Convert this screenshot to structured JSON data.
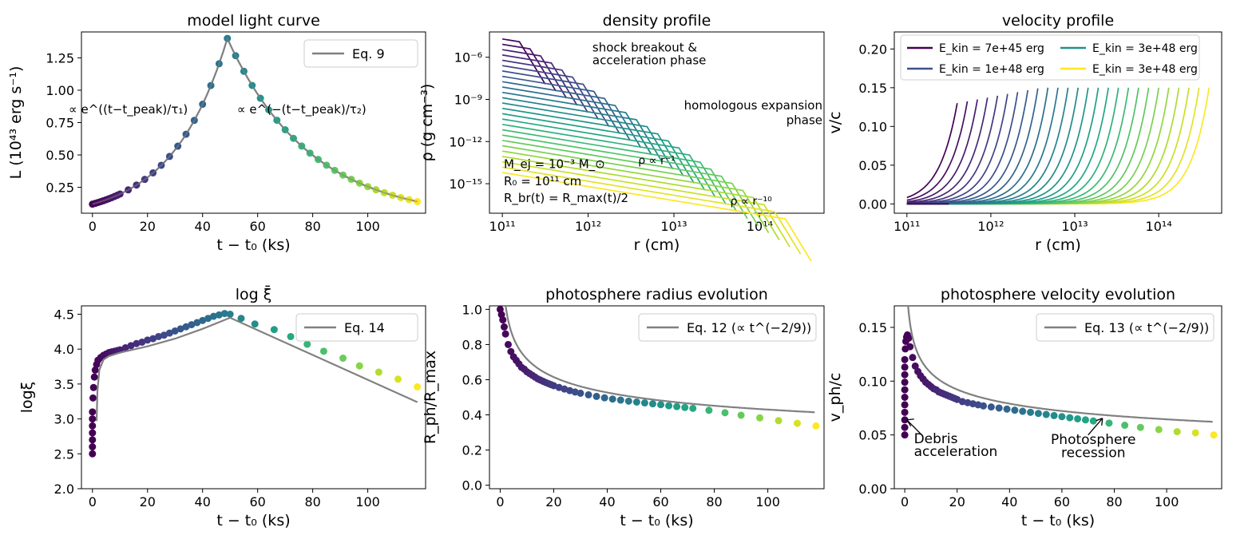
{
  "chart_data": [
    {
      "id": "light-curve",
      "type": "line+scatter",
      "title": "model light curve",
      "xlabel": "t − t₀ (ks)",
      "ylabel": "L (10⁴³ erg s⁻¹)",
      "xlim": [
        -4,
        121
      ],
      "ylim": [
        0.05,
        1.45
      ],
      "xticks": [
        0,
        20,
        40,
        60,
        80,
        100
      ],
      "xtick_labels": [
        "0",
        "20",
        "40",
        "60",
        "80",
        "100"
      ],
      "yticks": [
        0.25,
        0.5,
        0.75,
        1.0,
        1.25
      ],
      "ytick_labels": [
        "0.25",
        "0.50",
        "0.75",
        "1.00",
        "1.25"
      ],
      "model": {
        "name": "Eq. 9",
        "color": "#808080",
        "t_peak": 49,
        "L_peak": 1.4,
        "L0": 0.12,
        "t0": 0,
        "t_end": 118,
        "L_end": 0.14
      },
      "legend": [
        "Eq. 9"
      ],
      "annotations": [
        "∝ e^((t−t_peak)/τ₁)",
        "∝ e^(−(t−t_peak)/τ₂)"
      ],
      "points": {
        "t_start": 0,
        "t_end": 118,
        "dense_until": 10,
        "dense_step": 1,
        "step": 3
      }
    },
    {
      "id": "density-profile",
      "type": "line",
      "title": "density profile",
      "xlabel": "r (cm)",
      "ylabel": "ρ (g cm⁻³)",
      "xscale": "log",
      "yscale": "log",
      "xlim_log10": [
        10.85,
        14.75
      ],
      "ylim_log10": [
        -17.1,
        -4.2
      ],
      "xticks_log10": [
        11,
        12,
        13,
        14
      ],
      "xtick_labels": [
        "10¹¹",
        "10¹²",
        "10¹³",
        "10¹⁴"
      ],
      "yticks_log10": [
        -6,
        -9,
        -12,
        -15
      ],
      "ytick_labels": [
        "10⁻⁶",
        "10⁻⁹",
        "10⁻¹²",
        "10⁻¹⁵"
      ],
      "n_curves": 26,
      "rmax_log10_range": [
        11.5,
        14.6
      ],
      "rho_start_log10_range": [
        -4.7,
        -14.2
      ],
      "annotations": [
        "shock breakout &",
        "acceleration phase",
        "homologous expansion",
        "phase",
        "ρ ∝ r⁻¹",
        "ρ ∝ r⁻¹⁰",
        "M_ej = 10⁻³ M_⊙",
        "R₀ = 10¹¹ cm",
        "R_br(t) = R_max(t)/2"
      ]
    },
    {
      "id": "velocity-profile",
      "type": "line",
      "title": "velocity profile",
      "xlabel": "r (cm)",
      "ylabel": "v/c",
      "xscale": "log",
      "xlim_log10": [
        10.85,
        14.75
      ],
      "ylim": [
        -0.012,
        0.222
      ],
      "xticks_log10": [
        11,
        12,
        13,
        14
      ],
      "xtick_labels": [
        "10¹¹",
        "10¹²",
        "10¹³",
        "10¹⁴"
      ],
      "yticks": [
        0.0,
        0.05,
        0.1,
        0.15,
        0.2
      ],
      "ytick_labels": [
        "0.00",
        "0.05",
        "0.10",
        "0.15",
        "0.20"
      ],
      "n_curves": 26,
      "rmax_log10_range": [
        11.6,
        14.6
      ],
      "legend": [
        {
          "label": "E_kin = 7e+45 erg",
          "color": "#440154"
        },
        {
          "label": "E_kin = 1e+48 erg",
          "color": "#3b528b"
        },
        {
          "label": "E_kin = 3e+48 erg",
          "color": "#21918c"
        },
        {
          "label": "E_kin = 3e+48 erg",
          "color": "#fde725"
        }
      ]
    },
    {
      "id": "log-xi",
      "type": "line+scatter",
      "title": "log ξ̄",
      "xlabel": "t − t₀ (ks)",
      "ylabel": "logξ",
      "xlim": [
        -4,
        121
      ],
      "ylim": [
        2.0,
        4.62
      ],
      "xticks": [
        0,
        20,
        40,
        60,
        80,
        100
      ],
      "xtick_labels": [
        "0",
        "20",
        "40",
        "60",
        "80",
        "100"
      ],
      "yticks": [
        2.0,
        2.5,
        3.0,
        3.5,
        4.0,
        4.5
      ],
      "ytick_labels": [
        "2.0",
        "2.5",
        "3.0",
        "3.5",
        "4.0",
        "4.5"
      ],
      "legend": [
        "Eq. 14"
      ],
      "model_line": {
        "x": [
          1.5,
          1.8,
          2.5,
          4,
          6,
          10,
          20,
          30,
          40,
          50,
          118
        ],
        "y": [
          2.97,
          3.4,
          3.7,
          3.85,
          3.9,
          3.95,
          4.04,
          4.15,
          4.29,
          4.45,
          3.24
        ]
      },
      "points": {
        "x": [
          0,
          0,
          0,
          0,
          0,
          0,
          0,
          0.2,
          0.4,
          0.7,
          1,
          1.5,
          2,
          3,
          4,
          5,
          6,
          7,
          8,
          9,
          10,
          12,
          14,
          16,
          18,
          20,
          22,
          24,
          26,
          28,
          30,
          32,
          34,
          36,
          38,
          40,
          42,
          44,
          46,
          48,
          50,
          54,
          59,
          66,
          72,
          78,
          84,
          91,
          97,
          104,
          111,
          118
        ],
        "y": [
          2.5,
          2.6,
          2.7,
          2.8,
          2.9,
          3.0,
          3.1,
          3.3,
          3.45,
          3.6,
          3.7,
          3.78,
          3.84,
          3.88,
          3.91,
          3.93,
          3.95,
          3.96,
          3.97,
          3.98,
          3.99,
          4.02,
          4.05,
          4.08,
          4.1,
          4.13,
          4.15,
          4.18,
          4.2,
          4.23,
          4.26,
          4.29,
          4.32,
          4.35,
          4.38,
          4.41,
          4.44,
          4.47,
          4.49,
          4.51,
          4.5,
          4.44,
          4.36,
          4.28,
          4.18,
          4.07,
          3.97,
          3.87,
          3.76,
          3.67,
          3.57,
          3.46
        ]
      }
    },
    {
      "id": "photosphere-radius",
      "type": "line+scatter",
      "title": "photosphere radius evolution",
      "xlabel": "t − t₀ (ks)",
      "ylabel": "R_ph/R_max",
      "xlim": [
        -4,
        121
      ],
      "ylim": [
        -0.02,
        1.02
      ],
      "xticks": [
        0,
        20,
        40,
        60,
        80,
        100
      ],
      "xtick_labels": [
        "0",
        "20",
        "40",
        "60",
        "80",
        "100"
      ],
      "yticks": [
        0.0,
        0.2,
        0.4,
        0.6,
        0.8,
        1.0
      ],
      "ytick_labels": [
        "0.0",
        "0.2",
        "0.4",
        "0.6",
        "0.8",
        "1.0"
      ],
      "legend": [
        "Eq. 12 (∝ t^(−2/9))"
      ],
      "model": {
        "law": "power",
        "exponent": -0.2222,
        "t_ref": 100,
        "y_ref": 0.43,
        "t_min": 1.6
      },
      "points": {
        "x": [
          0,
          0.5,
          1,
          1.5,
          2,
          3,
          4,
          5,
          6,
          7,
          8,
          9,
          10,
          11,
          12,
          13,
          14,
          15,
          16,
          17,
          18,
          19,
          20,
          22,
          24,
          26,
          28,
          30,
          33,
          36,
          39,
          42,
          45,
          48,
          51,
          54,
          57,
          60,
          63,
          66,
          69,
          72,
          78,
          84,
          90,
          97,
          104,
          111,
          118
        ],
        "y": [
          1.0,
          0.97,
          0.94,
          0.9,
          0.86,
          0.8,
          0.76,
          0.73,
          0.71,
          0.69,
          0.67,
          0.66,
          0.645,
          0.635,
          0.625,
          0.615,
          0.605,
          0.598,
          0.591,
          0.584,
          0.578,
          0.572,
          0.566,
          0.556,
          0.547,
          0.538,
          0.53,
          0.523,
          0.514,
          0.505,
          0.497,
          0.49,
          0.484,
          0.478,
          0.473,
          0.468,
          0.463,
          0.458,
          0.452,
          0.447,
          0.442,
          0.437,
          0.426,
          0.412,
          0.398,
          0.383,
          0.367,
          0.352,
          0.337
        ]
      }
    },
    {
      "id": "photosphere-velocity",
      "type": "line+scatter",
      "title": "photosphere velocity evolution",
      "xlabel": "t − t₀ (ks)",
      "ylabel": "v_ph/c",
      "xlim": [
        -4,
        121
      ],
      "ylim": [
        0.0,
        0.17
      ],
      "xticks": [
        0,
        20,
        40,
        60,
        80,
        100
      ],
      "xtick_labels": [
        "0",
        "20",
        "40",
        "60",
        "80",
        "100"
      ],
      "yticks": [
        0.0,
        0.05,
        0.1,
        0.15
      ],
      "ytick_labels": [
        "0.00",
        "0.05",
        "0.10",
        "0.15"
      ],
      "legend": [
        "Eq. 13 (∝ t^(−2/9))"
      ],
      "model": {
        "law": "power",
        "exponent": -0.2222,
        "t_ref": 100,
        "y_ref": 0.0645,
        "t_min": 0.3
      },
      "points": {
        "x": [
          0,
          0,
          0,
          0,
          0,
          0,
          0,
          0,
          0,
          0,
          0,
          0.2,
          0.4,
          0.7,
          1,
          1.5,
          2,
          3,
          4,
          5,
          6,
          7,
          8,
          9,
          10,
          11,
          12,
          13,
          14,
          15,
          16,
          17,
          18,
          19,
          20,
          22,
          24,
          26,
          28,
          30,
          33,
          36,
          39,
          42,
          45,
          48,
          51,
          54,
          57,
          60,
          63,
          66,
          69,
          72,
          78,
          84,
          90,
          97,
          104,
          111,
          118
        ],
        "y": [
          0.05,
          0.057,
          0.064,
          0.071,
          0.078,
          0.085,
          0.092,
          0.099,
          0.106,
          0.113,
          0.12,
          0.13,
          0.137,
          0.141,
          0.143,
          0.14,
          0.132,
          0.122,
          0.114,
          0.109,
          0.105,
          0.102,
          0.099,
          0.097,
          0.095,
          0.093,
          0.092,
          0.09,
          0.089,
          0.088,
          0.087,
          0.086,
          0.085,
          0.084,
          0.083,
          0.081,
          0.08,
          0.079,
          0.078,
          0.077,
          0.076,
          0.075,
          0.074,
          0.073,
          0.072,
          0.071,
          0.07,
          0.069,
          0.068,
          0.067,
          0.066,
          0.065,
          0.064,
          0.063,
          0.061,
          0.059,
          0.057,
          0.055,
          0.053,
          0.052,
          0.05
        ]
      },
      "annotations": [
        "Debris",
        "acceleration",
        "Photosphere",
        "recession"
      ]
    }
  ]
}
